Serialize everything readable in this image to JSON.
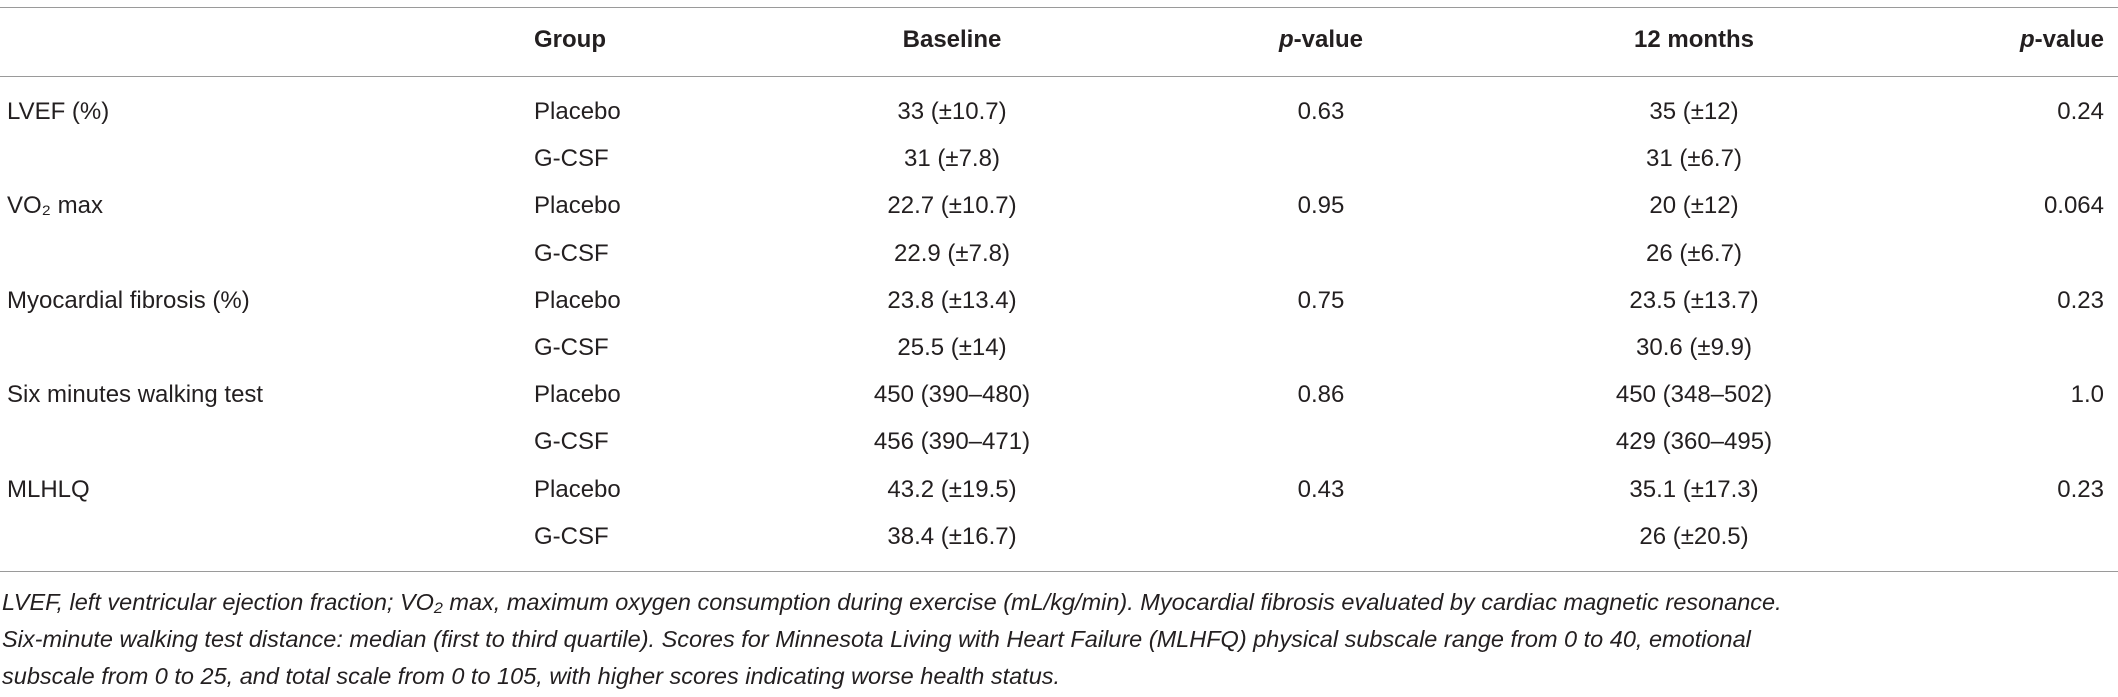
{
  "table": {
    "header": {
      "group": "Group",
      "baseline": "Baseline",
      "p_baseline": "p-value",
      "month12": "12 months",
      "p_month12": "p-value"
    },
    "measures": [
      {
        "label": "LVEF (%)",
        "p_baseline": "0.63",
        "p_month12": "0.24",
        "groups": [
          {
            "name": "Placebo",
            "baseline": "33 (±10.7)",
            "month12": "35 (±12)"
          },
          {
            "name": "G-CSF",
            "baseline": "31 (±7.8)",
            "month12": "31 (±6.7)"
          }
        ]
      },
      {
        "label": "VO₂ max",
        "p_baseline": "0.95",
        "p_month12": "0.064",
        "groups": [
          {
            "name": "Placebo",
            "baseline": "22.7 (±10.7)",
            "month12": "20 (±12)"
          },
          {
            "name": "G-CSF",
            "baseline": "22.9 (±7.8)",
            "month12": "26 (±6.7)"
          }
        ]
      },
      {
        "label": "Myocardial fibrosis (%)",
        "p_baseline": "0.75",
        "p_month12": "0.23",
        "groups": [
          {
            "name": "Placebo",
            "baseline": "23.8 (±13.4)",
            "month12": "23.5 (±13.7)"
          },
          {
            "name": "G-CSF",
            "baseline": "25.5 (±14)",
            "month12": "30.6 (±9.9)"
          }
        ]
      },
      {
        "label": "Six minutes walking test",
        "p_baseline": "0.86",
        "p_month12": "1.0",
        "groups": [
          {
            "name": "Placebo",
            "baseline": "450 (390–480)",
            "month12": "450 (348–502)"
          },
          {
            "name": "G-CSF",
            "baseline": "456 (390–471)",
            "month12": "429 (360–495)"
          }
        ]
      },
      {
        "label": "MLHLQ",
        "p_baseline": "0.43",
        "p_month12": "0.23",
        "groups": [
          {
            "name": "Placebo",
            "baseline": "43.2 (±19.5)",
            "month12": "35.1 (±17.3)"
          },
          {
            "name": "G-CSF",
            "baseline": "38.4 (±16.7)",
            "month12": "26 (±20.5)"
          }
        ]
      }
    ],
    "footnote": [
      "LVEF, left ventricular ejection fraction; VO₂ max, maximum oxygen consumption during exercise (mL/kg/min). Myocardial fibrosis evaluated by cardiac magnetic resonance.",
      "Six-minute walking test distance: median (first to third quartile). Scores for Minnesota Living with Heart Failure (MLHFQ) physical subscale range from 0 to 40, emotional",
      "subscale from 0 to 25, and total scale from 0 to 105, with higher scores indicating worse health status."
    ]
  }
}
